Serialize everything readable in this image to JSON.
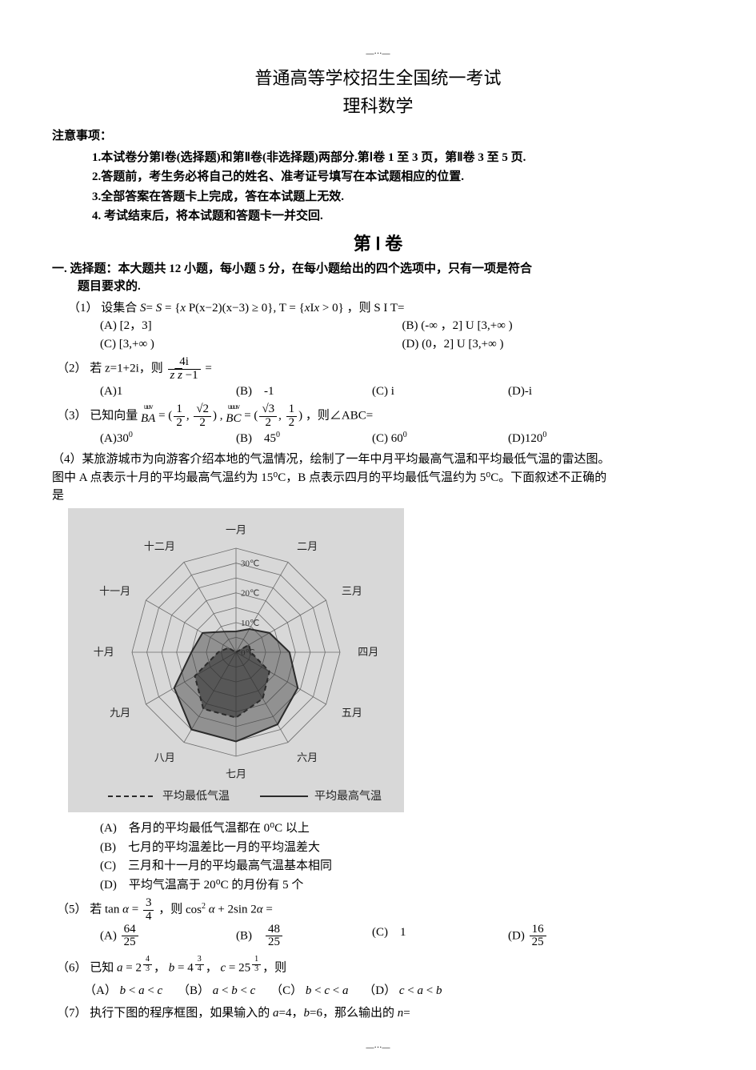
{
  "margins": {
    "top_mark": "—···—",
    "bottom_mark": "—···—"
  },
  "title_line1": "普通高等学校招生全国统一考试",
  "title_line2": "理科数学",
  "notice_header": "注意事项：",
  "notices": [
    "1.本试卷分第Ⅰ卷(选择题)和第Ⅱ卷(非选择题)两部分.第Ⅰ卷 1 至 3 页，第Ⅱ卷 3 至 5 页.",
    "2.答题前，考生务必将自己的姓名、准考证号填写在本试题相应的位置.",
    "3.全部答案在答题卡上完成，答在本试题上无效.",
    "4. 考试结束后，将本试题和答题卡一并交回."
  ],
  "section_title": "第 Ⅰ 卷",
  "section_intro1": "一. 选择题：本大题共 12 小题，每小题 5 分，在每小题给出的四个选项中，只有一项是符合",
  "section_intro2": "题目要求的.",
  "q1": {
    "stem_prefix": "（1） 设集合 ",
    "stem_math": "S = S = { x P (x−2)(x−3) ≥ 0 } , T = { x | x > 0 }",
    "stem_suffix": " ，则 S I  T=",
    "choices": {
      "A": "[2，3]",
      "B": "(-∞ ，2] U  [3,+∞ )",
      "C": "[3,+∞ )",
      "D": "(0，2] U  [3,+∞ )"
    }
  },
  "q2": {
    "stem_prefix": "（2） 若 z=1+2i，则 ",
    "frac_num": "4i",
    "frac_den_html": "z z̄ − 1",
    "stem_suffix": " =",
    "choices": {
      "A": "1",
      "B": "-1",
      "C": "i",
      "D": "-i"
    }
  },
  "q3": {
    "stem_prefix": "（3） 已知向量 ",
    "vec1": "BA",
    "vec2": "BC",
    "ba": "(1/2, √2/2)",
    "bc": "(√3/2, 1/2)",
    "stem_suffix": "，则∠ABC=",
    "choices": {
      "A": "30⁰",
      "B": "45⁰",
      "C": "60⁰",
      "D": "120⁰"
    }
  },
  "q4": {
    "stem_l1": "（4）某旅游城市为向游客介绍本地的气温情况，绘制了一年中月平均最高气温和平均最低气温的雷达图。",
    "stem_l2": "图中 A 点表示十月的平均最高气温约为 15⁰C，B 点表示四月的平均最低气温约为 5⁰C。下面叙述不正确的",
    "stem_l3": "是",
    "radar": {
      "months": [
        "一月",
        "二月",
        "三月",
        "四月",
        "五月",
        "六月",
        "七月",
        "八月",
        "九月",
        "十月",
        "十一月",
        "十二月"
      ],
      "ring_labels": [
        "30℃",
        "20℃",
        "10℃",
        "0℃"
      ],
      "series1_name": "平均最低气温",
      "series2_name": "平均最高气温",
      "series1": [
        -2,
        0,
        5,
        5,
        13,
        18,
        22,
        22,
        16,
        6,
        3,
        -1
      ],
      "series2": [
        7,
        9,
        13,
        18,
        24,
        28,
        30,
        30,
        24,
        15,
        13,
        8
      ],
      "max": 35,
      "bg": "#d8d8d8",
      "ring_color": "#6b6b6b",
      "series1_style": "dashed",
      "series2_style": "solid",
      "line_color": "#2b2b2b"
    },
    "choices": {
      "A": "各月的平均最低气温都在 0⁰C 以上",
      "B": "七月的平均温差比一月的平均温差大",
      "C": "三月和十一月的平均最高气温基本相同",
      "D": "平均气温高于 20⁰C 的月份有 5 个"
    }
  },
  "q5": {
    "stem_prefix": "（5） 若 ",
    "eq_lhs": "tan α = 3/4",
    "stem_mid": " ，则 ",
    "eq_rhs": "cos² α + 2sin 2α =",
    "choices": {
      "A": "64/25",
      "B": "48/25",
      "C": "1",
      "D": "16/25"
    }
  },
  "q6": {
    "stem": "（6） 已知 a = 2^{4/3}， b = 4^{3/4}， c = 25^{1/3}，则",
    "choices": {
      "A": "b < a < c",
      "B": "a < b < c",
      "C": "b < c < a",
      "D": "c < a < b"
    }
  },
  "q7": {
    "stem": "（7） 执行下图的程序框图，如果输入的 a=4，b=6，那么输出的 n="
  }
}
